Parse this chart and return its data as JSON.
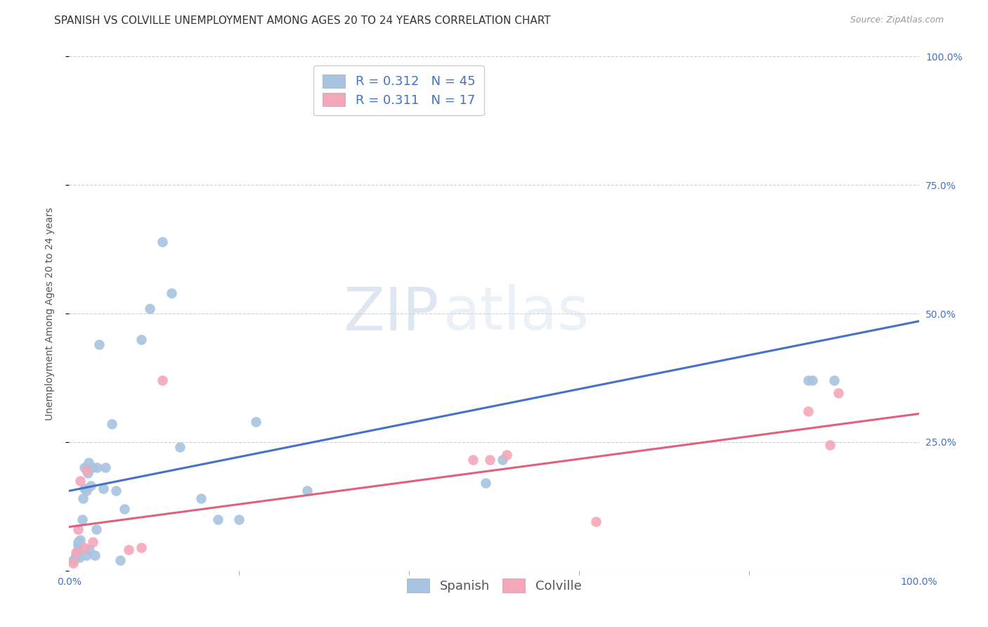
{
  "title": "SPANISH VS COLVILLE UNEMPLOYMENT AMONG AGES 20 TO 24 YEARS CORRELATION CHART",
  "source": "Source: ZipAtlas.com",
  "ylabel": "Unemployment Among Ages 20 to 24 years",
  "xlim": [
    0,
    1.0
  ],
  "ylim": [
    0,
    1.0
  ],
  "legend_r_spanish": "0.312",
  "legend_n_spanish": "45",
  "legend_r_colville": "0.311",
  "legend_n_colville": "17",
  "spanish_color": "#a8c4e0",
  "colville_color": "#f4a7b9",
  "line_spanish_color": "#4472c4",
  "line_colville_color": "#e06080",
  "watermark_zip": "ZIP",
  "watermark_atlas": "atlas",
  "spanish_x": [
    0.005,
    0.007,
    0.008,
    0.01,
    0.01,
    0.01,
    0.01,
    0.012,
    0.013,
    0.015,
    0.016,
    0.018,
    0.018,
    0.02,
    0.02,
    0.022,
    0.023,
    0.024,
    0.025,
    0.028,
    0.03,
    0.032,
    0.033,
    0.035,
    0.04,
    0.043,
    0.05,
    0.055,
    0.06,
    0.065,
    0.085,
    0.095,
    0.11,
    0.12,
    0.13,
    0.155,
    0.175,
    0.2,
    0.22,
    0.28,
    0.49,
    0.51,
    0.87,
    0.875,
    0.9
  ],
  "spanish_y": [
    0.02,
    0.025,
    0.03,
    0.035,
    0.04,
    0.05,
    0.055,
    0.025,
    0.06,
    0.1,
    0.14,
    0.16,
    0.2,
    0.03,
    0.155,
    0.19,
    0.21,
    0.04,
    0.165,
    0.2,
    0.03,
    0.08,
    0.2,
    0.44,
    0.16,
    0.2,
    0.285,
    0.155,
    0.02,
    0.12,
    0.45,
    0.51,
    0.64,
    0.54,
    0.24,
    0.14,
    0.1,
    0.1,
    0.29,
    0.155,
    0.17,
    0.215,
    0.37,
    0.37,
    0.37
  ],
  "colville_x": [
    0.005,
    0.008,
    0.01,
    0.013,
    0.018,
    0.02,
    0.028,
    0.07,
    0.085,
    0.11,
    0.475,
    0.495,
    0.515,
    0.62,
    0.87,
    0.895,
    0.905
  ],
  "colville_y": [
    0.015,
    0.035,
    0.08,
    0.175,
    0.045,
    0.195,
    0.055,
    0.04,
    0.045,
    0.37,
    0.215,
    0.215,
    0.225,
    0.095,
    0.31,
    0.245,
    0.345
  ],
  "spanish_line_x": [
    0.0,
    1.0
  ],
  "spanish_line_y": [
    0.155,
    0.485
  ],
  "colville_line_x": [
    0.0,
    1.0
  ],
  "colville_line_y": [
    0.085,
    0.305
  ],
  "background_color": "#ffffff",
  "grid_color": "#d0d0d0",
  "title_fontsize": 11,
  "axis_label_fontsize": 10,
  "tick_fontsize": 10,
  "legend_fontsize": 13
}
